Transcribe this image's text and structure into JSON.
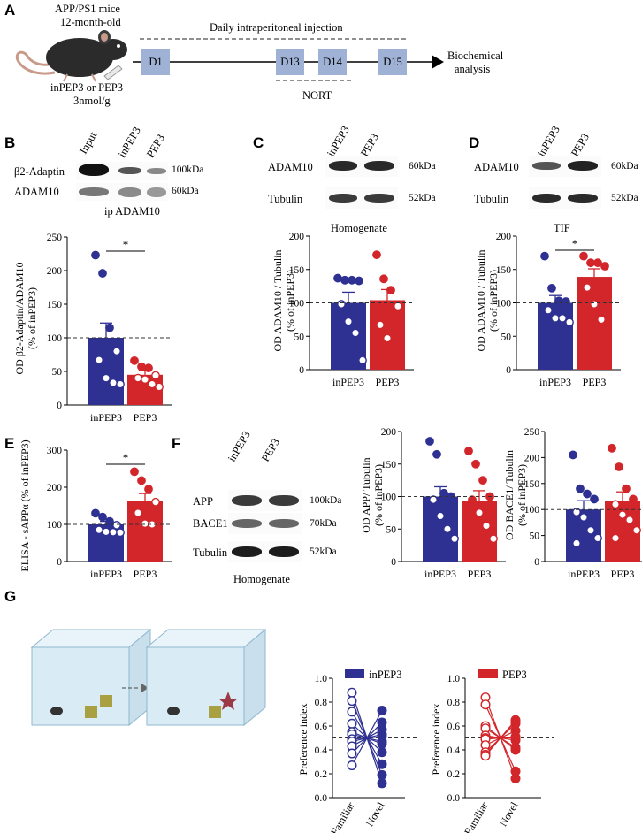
{
  "panels": [
    "A",
    "B",
    "C",
    "D",
    "E",
    "F",
    "G"
  ],
  "A": {
    "mouse_text": [
      "APP/PS1 mice",
      "12-month-old"
    ],
    "treatment_text": [
      "inPEP3 or PEP3",
      "3nmol/g"
    ],
    "injection_label": "Daily intraperitoneal injection",
    "days": [
      "D1",
      "D13",
      "D14",
      "D15"
    ],
    "nort_label": "NORT",
    "endpoint": [
      "Biochemical",
      "analysis"
    ]
  },
  "B": {
    "lanes": [
      "Input",
      "inPEP3",
      "PEP3"
    ],
    "blot_rows": [
      "β2-Adaptin",
      "ADAM10"
    ],
    "markers": [
      "100kDa",
      "60kDa"
    ],
    "blot_caption": "ip ADAM10",
    "sig": "*"
  },
  "C": {
    "lanes": [
      "inPEP3",
      "PEP3"
    ],
    "blot_rows": [
      "ADAM10",
      "Tubulin"
    ],
    "markers": [
      "60kDa",
      "52kDa"
    ],
    "blot_caption": "Homogenate"
  },
  "D": {
    "lanes": [
      "inPEP3",
      "PEP3"
    ],
    "blot_rows": [
      "ADAM10",
      "Tubulin"
    ],
    "markers": [
      "60kDa",
      "52kDa"
    ],
    "blot_caption": "TIF",
    "sig": "*"
  },
  "E": {
    "sig": "*"
  },
  "F": {
    "lanes": [
      "inPEP3",
      "PEP3"
    ],
    "blot_rows": [
      "APP",
      "BACE1",
      "Tubulin"
    ],
    "markers": [
      "100kDa",
      "70kDa",
      "52kDa"
    ],
    "blot_caption": "Homogenate"
  },
  "colors": {
    "inPEP3": "#2e3192",
    "PEP3": "#d2262b",
    "box": "#9fb2d6"
  },
  "chart_data": [
    {
      "id": "B",
      "type": "bar",
      "ylabel": [
        "OD β2-Adaptin/ADAM10",
        "(% of inPEP3)"
      ],
      "ylim": [
        0,
        250
      ],
      "yticks": [
        0,
        50,
        100,
        150,
        200,
        250
      ],
      "ref": 100,
      "categories": [
        "inPEP3",
        "PEP3"
      ],
      "values": [
        100,
        45
      ],
      "sem": [
        22,
        7
      ],
      "points": [
        [
          223,
          196,
          115,
          80,
          67,
          40,
          33,
          31
        ],
        [
          66,
          57,
          55,
          44,
          40,
          38,
          31,
          27
        ]
      ],
      "sig": [
        0,
        1
      ]
    },
    {
      "id": "C",
      "type": "bar",
      "ylabel": [
        "OD ADAM10 / Tubulin",
        "(% of inPEP3)"
      ],
      "ylim": [
        0,
        200
      ],
      "yticks": [
        0,
        50,
        100,
        150,
        200
      ],
      "ref": 100,
      "categories": [
        "inPEP3",
        "PEP3"
      ],
      "values": [
        100,
        104
      ],
      "sem": [
        16,
        16
      ],
      "points": [
        [
          137,
          134,
          134,
          133,
          98,
          72,
          55,
          14
        ],
        [
          172,
          136,
          119,
          95,
          67,
          47
        ]
      ]
    },
    {
      "id": "D",
      "type": "bar",
      "ylabel": [
        "OD ADAM10 / Tubulin",
        "(% of inPEP3)"
      ],
      "ylim": [
        0,
        200
      ],
      "yticks": [
        0,
        50,
        100,
        150,
        200
      ],
      "ref": 100,
      "categories": [
        "inPEP3",
        "PEP3"
      ],
      "values": [
        100,
        139
      ],
      "sem": [
        11,
        12
      ],
      "points": [
        [
          170,
          122,
          103,
          102,
          89,
          77,
          77,
          71
        ],
        [
          170,
          160,
          160,
          155,
          123,
          98,
          75
        ]
      ],
      "sig": [
        0,
        1
      ]
    },
    {
      "id": "E",
      "type": "bar",
      "ylabel": [
        "ELISA - sAPPα (% of inPEP3)"
      ],
      "ylim": [
        0,
        300
      ],
      "yticks": [
        0,
        100,
        200,
        300
      ],
      "ref": 100,
      "categories": [
        "inPEP3",
        "PEP3"
      ],
      "values": [
        100,
        162
      ],
      "sem": [
        8,
        21
      ],
      "points": [
        [
          130,
          120,
          108,
          98,
          85,
          80,
          79,
          78
        ],
        [
          242,
          218,
          195,
          160,
          131,
          102,
          100
        ]
      ],
      "sig": [
        0,
        1
      ]
    },
    {
      "id": "F-APP",
      "type": "bar",
      "ylabel": [
        "OD APP/ Tubulin",
        "(% of inPEP3)"
      ],
      "ylim": [
        0,
        200
      ],
      "yticks": [
        0,
        50,
        100,
        150,
        200
      ],
      "ref": 100,
      "categories": [
        "inPEP3",
        "PEP3"
      ],
      "values": [
        100,
        93
      ],
      "sem": [
        15,
        16
      ],
      "points": [
        [
          185,
          165,
          105,
          100,
          95,
          70,
          50,
          35
        ],
        [
          170,
          150,
          125,
          100,
          95,
          75,
          55,
          35
        ]
      ]
    },
    {
      "id": "F-BACE1",
      "type": "bar",
      "ylabel": [
        "OD BACE1/ Tubulin",
        "(% of inPEP3)"
      ],
      "ylim": [
        0,
        250
      ],
      "yticks": [
        0,
        50,
        100,
        150,
        200,
        250
      ],
      "ref": 100,
      "categories": [
        "inPEP3",
        "PEP3"
      ],
      "values": [
        100,
        116
      ],
      "sem": [
        17,
        18
      ],
      "points": [
        [
          205,
          140,
          130,
          120,
          95,
          85,
          60,
          45,
          35
        ],
        [
          218,
          182,
          140,
          120,
          110,
          90,
          80,
          60,
          45
        ]
      ]
    },
    {
      "id": "G-inPEP3",
      "type": "line",
      "legend": "inPEP3",
      "ylabel": "Preference index",
      "ylim": [
        0,
        1
      ],
      "yticks": [
        "0.0",
        "0.2",
        "0.4",
        "0.6",
        "0.8",
        "1.0"
      ],
      "ref": 0.5,
      "categories": [
        "Familiar",
        "Novel"
      ],
      "pairs": [
        [
          0.88,
          0.12
        ],
        [
          0.81,
          0.19
        ],
        [
          0.72,
          0.28
        ],
        [
          0.62,
          0.38
        ],
        [
          0.55,
          0.45
        ],
        [
          0.53,
          0.47
        ],
        [
          0.49,
          0.51
        ],
        [
          0.47,
          0.53
        ],
        [
          0.43,
          0.57
        ],
        [
          0.37,
          0.63
        ],
        [
          0.27,
          0.73
        ]
      ]
    },
    {
      "id": "G-PEP3",
      "type": "line",
      "legend": "PEP3",
      "ylabel": "Preference index",
      "ylim": [
        0,
        1
      ],
      "yticks": [
        "0.0",
        "0.2",
        "0.4",
        "0.6",
        "0.8",
        "1.0"
      ],
      "ref": 0.5,
      "categories": [
        "Familiar",
        "Novel"
      ],
      "pairs": [
        [
          0.84,
          0.16
        ],
        [
          0.78,
          0.22
        ],
        [
          0.6,
          0.4
        ],
        [
          0.58,
          0.42
        ],
        [
          0.52,
          0.48
        ],
        [
          0.5,
          0.5
        ],
        [
          0.49,
          0.51
        ],
        [
          0.44,
          0.56
        ],
        [
          0.38,
          0.62
        ],
        [
          0.36,
          0.64
        ],
        [
          0.35,
          0.65
        ]
      ]
    }
  ]
}
